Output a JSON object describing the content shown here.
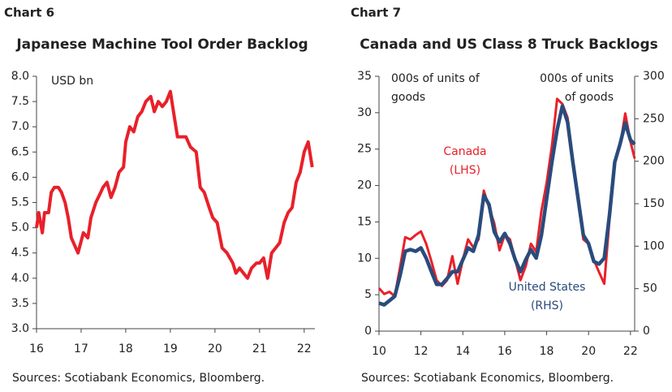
{
  "chart_data": [
    {
      "type": "line",
      "label": "Chart 6",
      "title": "Japanese Machine Tool Order Backlog",
      "annotations": [
        "USD bn"
      ],
      "source": "Sources: Scotiabank Economics, Bloomberg.",
      "color": "#e8202a",
      "x": [
        16.0,
        16.05,
        16.13,
        16.18,
        16.27,
        16.33,
        16.4,
        16.49,
        16.56,
        16.64,
        16.71,
        16.78,
        16.93,
        17.05,
        17.15,
        17.22,
        17.33,
        17.44,
        17.49,
        17.58,
        17.67,
        17.76,
        17.85,
        17.95,
        18.0,
        18.09,
        18.18,
        18.27,
        18.36,
        18.45,
        18.56,
        18.64,
        18.73,
        18.82,
        18.91,
        19.0,
        19.07,
        19.16,
        19.35,
        19.45,
        19.58,
        19.67,
        19.76,
        19.87,
        19.95,
        20.05,
        20.16,
        20.27,
        20.4,
        20.47,
        20.55,
        20.64,
        20.73,
        20.82,
        20.93,
        21.0,
        21.09,
        21.18,
        21.27,
        21.36,
        21.45,
        21.55,
        21.64,
        21.73,
        21.82,
        21.91,
        22.0,
        22.09,
        22.18
      ],
      "values": [
        5.0,
        5.3,
        4.9,
        5.3,
        5.3,
        5.7,
        5.8,
        5.8,
        5.7,
        5.5,
        5.2,
        4.8,
        4.5,
        4.9,
        4.8,
        5.2,
        5.5,
        5.7,
        5.8,
        5.9,
        5.6,
        5.8,
        6.1,
        6.2,
        6.7,
        7.0,
        6.9,
        7.2,
        7.3,
        7.5,
        7.6,
        7.3,
        7.5,
        7.4,
        7.5,
        7.7,
        7.3,
        6.8,
        6.8,
        6.6,
        6.5,
        5.8,
        5.7,
        5.4,
        5.2,
        5.1,
        4.6,
        4.5,
        4.3,
        4.1,
        4.2,
        4.1,
        4.0,
        4.2,
        4.3,
        4.3,
        4.4,
        4.0,
        4.5,
        4.6,
        4.7,
        5.1,
        5.3,
        5.4,
        5.9,
        6.1,
        6.5,
        6.7,
        6.2
      ],
      "xlim": [
        16,
        22.24
      ],
      "xticks": [
        16,
        17,
        18,
        19,
        20,
        21,
        22
      ],
      "ylim": [
        3,
        8
      ],
      "yticks": [
        {
          "value": 3,
          "label": "3.0"
        },
        {
          "value": 3.5,
          "label": "3.5"
        },
        {
          "value": 4,
          "label": "4.0"
        },
        {
          "value": 4.5,
          "label": "4.5"
        },
        {
          "value": 5,
          "label": "5.0"
        },
        {
          "value": 5.5,
          "label": "5.5"
        },
        {
          "value": 6,
          "label": "6.0"
        },
        {
          "value": 6.5,
          "label": "6.5"
        },
        {
          "value": 7,
          "label": "7.0"
        },
        {
          "value": 7.5,
          "label": "7.5"
        },
        {
          "value": 8,
          "label": "8.0"
        }
      ],
      "grid": false
    },
    {
      "type": "line",
      "label": "Chart 7",
      "title": "Canada and US Class 8 Truck Backlogs",
      "annotations": [
        "000s of units of goods",
        "000s of units of goods"
      ],
      "source": "Sources: Scotiabank Economics, Bloomberg.",
      "x": [
        10.0,
        10.25,
        10.5,
        10.75,
        11.0,
        11.25,
        11.5,
        11.75,
        12.0,
        12.25,
        12.5,
        12.75,
        13.0,
        13.25,
        13.5,
        13.75,
        14.0,
        14.25,
        14.5,
        14.75,
        15.0,
        15.25,
        15.5,
        15.75,
        16.0,
        16.25,
        16.5,
        16.75,
        17.0,
        17.25,
        17.5,
        17.75,
        18.0,
        18.25,
        18.5,
        18.75,
        19.0,
        19.25,
        19.5,
        19.75,
        20.0,
        20.25,
        20.5,
        20.75,
        21.0,
        21.25,
        21.5,
        21.75,
        22.0,
        22.2
      ],
      "series": [
        {
          "name": "Canada (LHS)",
          "color": "#e8202a",
          "width": 3,
          "values": [
            5.9,
            5.1,
            5.4,
            4.8,
            8.7,
            12.9,
            12.6,
            13.2,
            13.7,
            12,
            9.6,
            7,
            6.2,
            7,
            10.3,
            6.5,
            9.8,
            12.6,
            11.5,
            12.6,
            19.3,
            17,
            14.8,
            11.1,
            13.2,
            12.6,
            9.8,
            7,
            8.9,
            12,
            10.9,
            16.5,
            20.4,
            25.4,
            31.9,
            31.2,
            29.3,
            23.2,
            18.7,
            12.6,
            12,
            9.8,
            8.1,
            6.5,
            15.4,
            23.2,
            25.4,
            29.9,
            26,
            23.7
          ]
        },
        {
          "name": "United States (RHS)",
          "color": "#2a4b7c",
          "width": 4.5,
          "axis": "y2",
          "values": [
            33,
            31,
            36,
            41,
            65,
            94,
            96,
            94,
            98,
            86,
            70,
            55,
            55,
            62,
            70,
            70,
            84,
            98,
            94,
            113,
            160,
            149,
            117,
            105,
            115,
            103,
            84,
            70,
            84,
            96,
            86,
            113,
            156,
            199,
            237,
            265,
            246,
            199,
            156,
            113,
            103,
            82,
            79,
            86,
            137,
            199,
            220,
            245,
            225,
            220
          ]
        }
      ],
      "xlim": [
        10,
        22.2
      ],
      "xticks": [
        10,
        12,
        14,
        16,
        18,
        20,
        22
      ],
      "ylim": [
        0,
        35
      ],
      "yticks": [
        0,
        5,
        10,
        15,
        20,
        25,
        30,
        35
      ],
      "y2lim": [
        0,
        300
      ],
      "y2ticks": [
        0,
        50,
        100,
        150,
        200,
        250,
        300
      ],
      "grid": false
    }
  ]
}
